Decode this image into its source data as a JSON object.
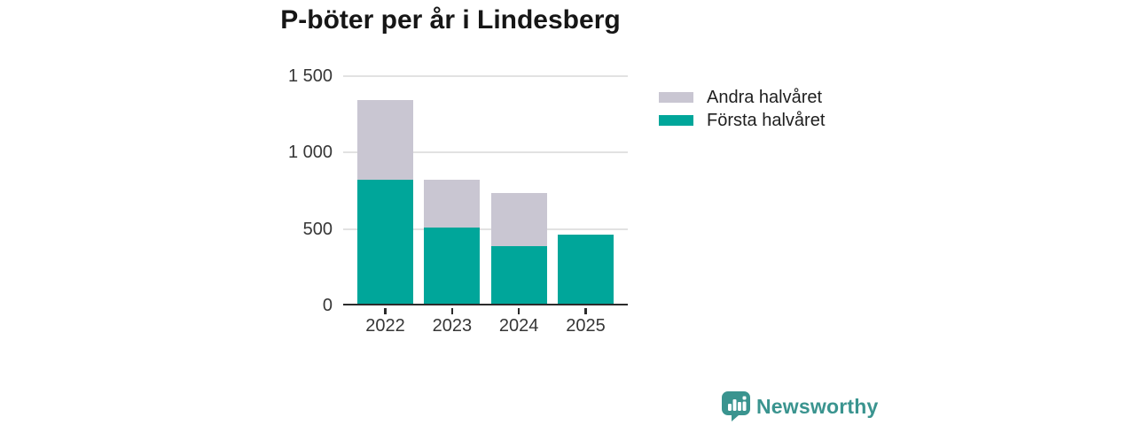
{
  "page": {
    "background": "#ffffff"
  },
  "chart_data": {
    "type": "bar",
    "stacked": true,
    "title": "P-böter per år i Lindesberg",
    "categories": [
      "2022",
      "2023",
      "2024",
      "2025"
    ],
    "series": [
      {
        "name": "Första halvåret",
        "color": "#00a69a",
        "values": [
          810,
          500,
          375,
          450
        ]
      },
      {
        "name": "Andra halvåret",
        "color": "#c9c6d2",
        "values": [
          525,
          310,
          350,
          0
        ]
      }
    ],
    "totals": [
      1335,
      810,
      725,
      450
    ],
    "xlabel": "",
    "ylabel": "",
    "ylim": [
      0,
      1500
    ],
    "yticks": [
      {
        "value": 0,
        "label": "0"
      },
      {
        "value": 500,
        "label": "500"
      },
      {
        "value": 1000,
        "label": "1 000"
      },
      {
        "value": 1500,
        "label": "1 500"
      }
    ],
    "grid": true,
    "legend_position": "upper-right",
    "legend_display_order": "reversed"
  },
  "legend_note": "legend rows are the series in reversed order",
  "logo": {
    "text": "Newsworthy",
    "color": "#3a948f",
    "icon": "speech-bubble-bar-chart-icon"
  },
  "colors": {
    "axis_line": "#2b2b2b",
    "gridline": "#e2e2e2",
    "title_text": "#161616",
    "tick_text": "#363636",
    "legend_text": "#1f1f1f"
  }
}
